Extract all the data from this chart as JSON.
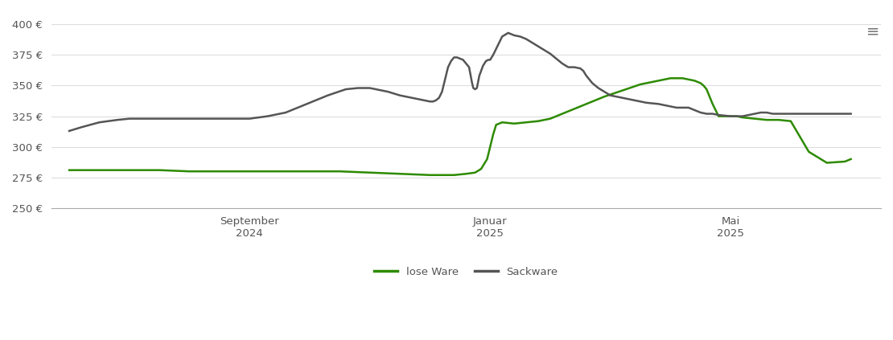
{
  "background_color": "#ffffff",
  "plot_bg_color": "#ffffff",
  "grid_color": "#dddddd",
  "lose_ware_color": "#2d8a00",
  "sack_ware_color": "#555555",
  "line_width": 1.8,
  "ylim": [
    250,
    410
  ],
  "yticks": [
    250,
    275,
    300,
    325,
    350,
    375,
    400
  ],
  "legend_labels": [
    "lose Ware",
    "Sackware"
  ],
  "x_tick_labels": [
    "September\n2024",
    "Januar\n2025",
    "Mai\n2025"
  ],
  "x_tick_positions": [
    3.0,
    7.0,
    11.0
  ],
  "lose_ware": {
    "x": [
      0,
      0.3,
      0.8,
      1.5,
      2.0,
      2.5,
      3.0,
      3.5,
      4.0,
      4.5,
      5.0,
      5.5,
      6.0,
      6.2,
      6.4,
      6.6,
      6.75,
      6.85,
      6.95,
      7.0,
      7.05,
      7.1,
      7.2,
      7.4,
      7.6,
      7.8,
      8.0,
      8.3,
      8.6,
      8.9,
      9.2,
      9.5,
      9.8,
      10.0,
      10.1,
      10.15,
      10.2,
      10.3,
      10.4,
      10.5,
      10.55,
      10.6,
      10.7,
      10.8,
      10.9,
      11.0,
      11.1,
      11.2,
      11.4,
      11.6,
      11.8,
      12.0,
      12.3,
      12.6,
      12.9,
      13.0
    ],
    "y": [
      281,
      281,
      281,
      281,
      280,
      280,
      280,
      280,
      280,
      280,
      279,
      278,
      277,
      277,
      277,
      278,
      279,
      282,
      290,
      300,
      310,
      318,
      320,
      319,
      320,
      321,
      323,
      329,
      335,
      341,
      346,
      351,
      354,
      356,
      356,
      356,
      356,
      355,
      354,
      352,
      350,
      347,
      335,
      325,
      325,
      325,
      325,
      324,
      323,
      322,
      322,
      321,
      296,
      287,
      288,
      290
    ]
  },
  "sack_ware": {
    "x": [
      0,
      0.2,
      0.5,
      0.8,
      1.0,
      1.5,
      2.0,
      2.2,
      2.4,
      2.6,
      2.8,
      3.0,
      3.3,
      3.6,
      3.8,
      4.0,
      4.3,
      4.6,
      4.8,
      5.0,
      5.3,
      5.5,
      5.7,
      5.9,
      6.0,
      6.05,
      6.1,
      6.15,
      6.2,
      6.25,
      6.3,
      6.35,
      6.4,
      6.45,
      6.5,
      6.55,
      6.6,
      6.65,
      6.7,
      6.72,
      6.75,
      6.78,
      6.82,
      6.88,
      6.93,
      6.97,
      7.0,
      7.05,
      7.1,
      7.2,
      7.3,
      7.4,
      7.5,
      7.6,
      7.7,
      7.8,
      8.0,
      8.2,
      8.3,
      8.4,
      8.5,
      8.55,
      8.6,
      8.65,
      8.7,
      8.8,
      8.9,
      9.0,
      9.2,
      9.4,
      9.6,
      9.8,
      10.0,
      10.1,
      10.15,
      10.2,
      10.3,
      10.4,
      10.5,
      10.6,
      10.7,
      10.8,
      11.0,
      11.2,
      11.4,
      11.5,
      11.6,
      11.7,
      11.8,
      12.0,
      12.2,
      12.4,
      12.6,
      12.8,
      13.0
    ],
    "y": [
      313,
      316,
      320,
      322,
      323,
      323,
      323,
      323,
      323,
      323,
      323,
      323,
      325,
      328,
      332,
      336,
      342,
      347,
      348,
      348,
      345,
      342,
      340,
      338,
      337,
      337,
      338,
      340,
      345,
      355,
      365,
      370,
      373,
      373,
      372,
      371,
      368,
      365,
      352,
      348,
      347,
      348,
      358,
      366,
      370,
      371,
      371,
      375,
      380,
      390,
      393,
      391,
      390,
      388,
      385,
      382,
      376,
      368,
      365,
      365,
      364,
      362,
      358,
      355,
      352,
      348,
      345,
      342,
      340,
      338,
      336,
      335,
      333,
      332,
      332,
      332,
      332,
      330,
      328,
      327,
      327,
      326,
      325,
      325,
      327,
      328,
      328,
      327,
      327,
      327,
      327,
      327,
      327,
      327,
      327
    ]
  }
}
